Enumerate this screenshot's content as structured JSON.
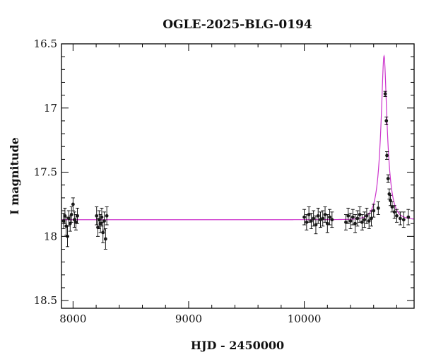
{
  "chart_data": {
    "type": "scatter",
    "title": "OGLE-2025-BLG-0194",
    "xlabel": "HJD - 2450000",
    "ylabel": "I magnitude",
    "xlim": [
      7900,
      10950
    ],
    "ylim": [
      18.56,
      16.5
    ],
    "y_inverted": true,
    "xticks_major": [
      8000,
      9000,
      10000
    ],
    "yticks_major": [
      16.5,
      17,
      17.5,
      18,
      18.5
    ],
    "xticks_minor_step": 200,
    "yticks_minor_step": 0.1,
    "grid": false,
    "legend": "none",
    "colors": {
      "points": "#1a1a1a",
      "model": "#cc33cc",
      "frame": "#000000"
    },
    "model": {
      "type": "microlensing",
      "baseline_mag": 17.87,
      "peak_time": 10690,
      "peak_mag": 16.45,
      "einstein_time_days": 62,
      "impact_parameter": 0.29
    },
    "series": [
      {
        "kind": "points_with_errors",
        "x": [
          7918,
          7930,
          7941,
          7952,
          7963,
          7975,
          7987,
          8000,
          8012,
          8025,
          8038,
          8204,
          8215,
          8226,
          8237,
          8248,
          8259,
          8270,
          8281,
          8292,
          10000,
          10020,
          10040,
          10060,
          10080,
          10100,
          10120,
          10140,
          10160,
          10180,
          10200,
          10220,
          10240,
          10360,
          10380,
          10400,
          10420,
          10440,
          10460,
          10480,
          10500,
          10520,
          10540,
          10560,
          10580,
          10600,
          10640,
          10700,
          10710,
          10715,
          10725,
          10735,
          10745,
          10760,
          10780,
          10800,
          10830,
          10860,
          10900
        ],
        "y": [
          17.88,
          17.84,
          17.92,
          18.0,
          17.86,
          17.9,
          17.83,
          17.75,
          17.87,
          17.89,
          17.84,
          17.84,
          17.93,
          17.87,
          17.9,
          17.85,
          17.97,
          17.88,
          18.02,
          17.84,
          17.85,
          17.89,
          17.83,
          17.88,
          17.86,
          17.91,
          17.84,
          17.87,
          17.86,
          17.83,
          17.9,
          17.85,
          17.87,
          17.89,
          17.84,
          17.88,
          17.85,
          17.9,
          17.86,
          17.83,
          17.89,
          17.87,
          17.84,
          17.88,
          17.86,
          17.8,
          17.78,
          16.89,
          17.1,
          17.37,
          17.55,
          17.67,
          17.72,
          17.77,
          17.81,
          17.84,
          17.86,
          17.87,
          17.85
        ],
        "err": [
          0.06,
          0.06,
          0.07,
          0.08,
          0.06,
          0.06,
          0.06,
          0.05,
          0.06,
          0.06,
          0.06,
          0.07,
          0.07,
          0.07,
          0.07,
          0.07,
          0.08,
          0.07,
          0.08,
          0.07,
          0.06,
          0.06,
          0.06,
          0.06,
          0.06,
          0.07,
          0.06,
          0.06,
          0.06,
          0.06,
          0.07,
          0.06,
          0.06,
          0.06,
          0.06,
          0.06,
          0.06,
          0.07,
          0.06,
          0.06,
          0.06,
          0.06,
          0.06,
          0.06,
          0.06,
          0.05,
          0.05,
          0.02,
          0.03,
          0.03,
          0.03,
          0.04,
          0.04,
          0.04,
          0.05,
          0.05,
          0.05,
          0.06,
          0.06
        ]
      }
    ]
  }
}
